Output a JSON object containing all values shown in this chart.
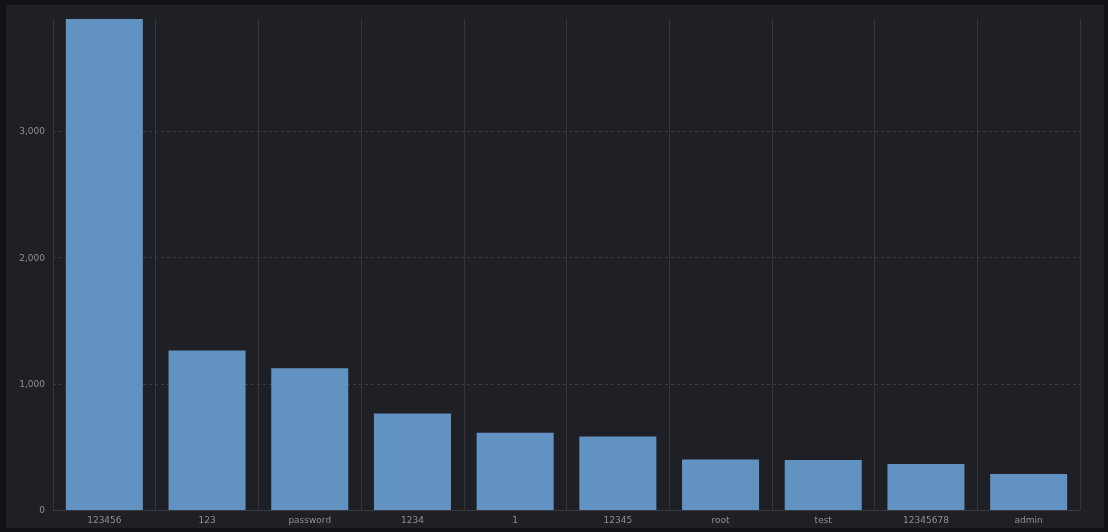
{
  "chart_data": {
    "type": "bar",
    "categories": [
      "123456",
      "123",
      "password",
      "1234",
      "1",
      "12345",
      "root",
      "test",
      "12345678",
      "admin"
    ],
    "values": [
      3890,
      1264,
      1124,
      764,
      612,
      582,
      400,
      397,
      365,
      286
    ],
    "color": "#6292c2",
    "ylim": [
      0,
      3890
    ],
    "yticks": [
      0,
      {
        "value": 1000,
        "label": "1,000"
      },
      {
        "value": 2000,
        "label": "2,000"
      },
      {
        "value": 3000,
        "label": "3,000"
      }
    ],
    "grid": true
  }
}
